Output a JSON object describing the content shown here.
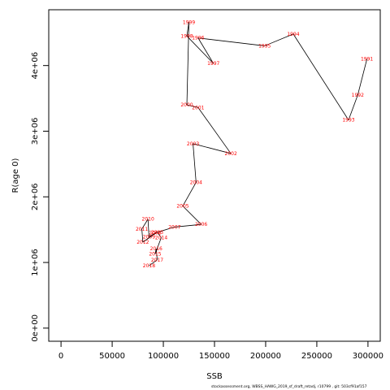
{
  "chart_data": {
    "type": "line",
    "title": "",
    "xlabel": "SSB",
    "ylabel": "R(age 0)",
    "xlim": [
      -12000,
      312000
    ],
    "ylim": [
      -200000,
      4850000
    ],
    "xticks": [
      0,
      50000,
      100000,
      150000,
      200000,
      250000,
      300000
    ],
    "xtick_labels": [
      "0",
      "50000",
      "100000",
      "150000",
      "200000",
      "250000",
      "300000"
    ],
    "yticks": [
      0,
      1000000,
      2000000,
      3000000,
      4000000
    ],
    "ytick_labels": [
      "0e+00",
      "1e+06",
      "2e+06",
      "3e+06",
      "4e+06"
    ],
    "grid": false,
    "series": [
      {
        "line_color": "#000000",
        "label_color": "#ff0000",
        "points": [
          {
            "label": "1991",
            "x": 299000,
            "y": 4100000
          },
          {
            "label": "1992",
            "x": 290000,
            "y": 3550000
          },
          {
            "label": "1993",
            "x": 281000,
            "y": 3170000
          },
          {
            "label": "1994",
            "x": 227000,
            "y": 4480000
          },
          {
            "label": "1995",
            "x": 199000,
            "y": 4300000
          },
          {
            "label": "1996",
            "x": 134000,
            "y": 4420000
          },
          {
            "label": "1997",
            "x": 149000,
            "y": 4030000
          },
          {
            "label": "1998",
            "x": 123000,
            "y": 4450000
          },
          {
            "label": "1999",
            "x": 125000,
            "y": 4660000
          },
          {
            "label": "2000",
            "x": 123000,
            "y": 3400000
          },
          {
            "label": "2001",
            "x": 134000,
            "y": 3360000
          },
          {
            "label": "2002",
            "x": 166000,
            "y": 2660000
          },
          {
            "label": "2003",
            "x": 129000,
            "y": 2810000
          },
          {
            "label": "2004",
            "x": 132000,
            "y": 2220000
          },
          {
            "label": "2005",
            "x": 119000,
            "y": 1860000
          },
          {
            "label": "2006",
            "x": 137000,
            "y": 1580000
          },
          {
            "label": "2007",
            "x": 111000,
            "y": 1540000
          },
          {
            "label": "2008",
            "x": 92000,
            "y": 1450000
          },
          {
            "label": "2009",
            "x": 86000,
            "y": 1390000
          },
          {
            "label": "2010",
            "x": 85000,
            "y": 1660000
          },
          {
            "label": "2011",
            "x": 79000,
            "y": 1510000
          },
          {
            "label": "2012",
            "x": 80000,
            "y": 1310000
          },
          {
            "label": "2013",
            "x": 94000,
            "y": 1460000
          },
          {
            "label": "2014",
            "x": 98000,
            "y": 1380000
          },
          {
            "label": "2015",
            "x": 92000,
            "y": 1130000
          },
          {
            "label": "2016",
            "x": 93000,
            "y": 1210000
          },
          {
            "label": "2017",
            "x": 94000,
            "y": 1040000
          },
          {
            "label": "2018",
            "x": 86000,
            "y": 950000
          }
        ]
      }
    ]
  },
  "footnote": "stockassessment.org, WBSS_HAWG_2019_sf_draft_retadj, r10799 , git: 503cf91af157"
}
